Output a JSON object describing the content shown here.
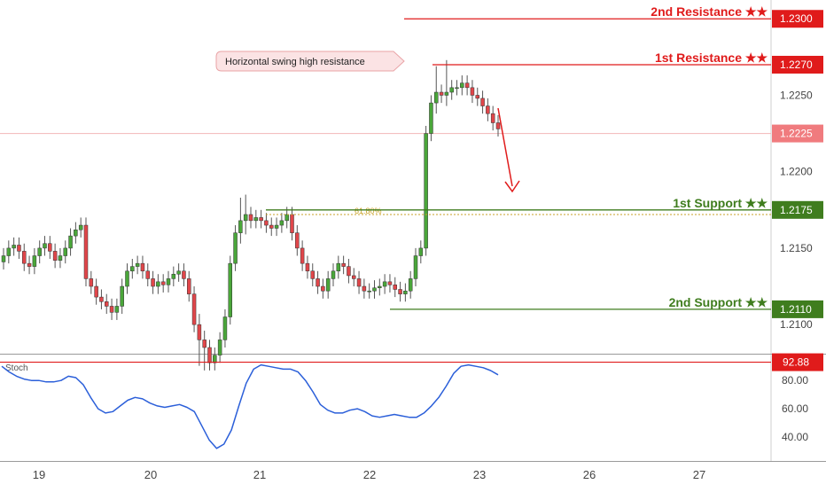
{
  "colors": {
    "resistance": "#e01b1b",
    "support": "#3f7d1e",
    "bull": "#4aa63a",
    "bear": "#e0464a",
    "stoch": "#2b5fd9",
    "axis_text": "#444444",
    "callout_fill": "#fbe3e4",
    "current_price_bg": "#f07b7e",
    "fib": "#c9a227"
  },
  "chart_data": [
    {
      "type": "candlestick",
      "ylim": [
        1.2085,
        1.231
      ],
      "x_ticks": [
        "19",
        "20",
        "21",
        "22",
        "23",
        "26",
        "27"
      ],
      "y_ticks": [
        "1.2250",
        "1.2200",
        "1.2150",
        "1.2100"
      ],
      "current_price": "1.2225",
      "levels": [
        {
          "name": "2nd Resistance ★★",
          "value": 1.23,
          "tag": "1.2300",
          "kind": "resistance"
        },
        {
          "name": "1st Resistance ★★",
          "value": 1.227,
          "tag": "1.2270",
          "kind": "resistance"
        },
        {
          "name": "1st Support ★★",
          "value": 1.2175,
          "tag": "1.2175",
          "kind": "support"
        },
        {
          "name": "2nd Support ★★",
          "value": 1.211,
          "tag": "1.2110",
          "kind": "support"
        }
      ],
      "fib_label": "61.80%",
      "fib_value": 1.2172,
      "annotation": "Horizontal swing high resistance",
      "close": [
        1.2145,
        1.215,
        1.2152,
        1.2148,
        1.214,
        1.2138,
        1.2145,
        1.215,
        1.2153,
        1.2148,
        1.2142,
        1.2145,
        1.215,
        1.2158,
        1.2162,
        1.2165,
        1.213,
        1.2125,
        1.2118,
        1.2115,
        1.2112,
        1.2108,
        1.2112,
        1.2125,
        1.2135,
        1.2138,
        1.214,
        1.2135,
        1.213,
        1.2125,
        1.2128,
        1.2126,
        1.213,
        1.2133,
        1.2135,
        1.213,
        1.212,
        1.21,
        1.209,
        1.2085,
        1.2075,
        1.208,
        1.209,
        1.2105,
        1.214,
        1.216,
        1.2168,
        1.2172,
        1.2168,
        1.217,
        1.2168,
        1.2165,
        1.2163,
        1.2165,
        1.2168,
        1.2172,
        1.216,
        1.215,
        1.214,
        1.2135,
        1.213,
        1.2125,
        1.2122,
        1.213,
        1.2135,
        1.214,
        1.2138,
        1.2132,
        1.213,
        1.2125,
        1.2122,
        1.2122,
        1.2124,
        1.2125,
        1.2128,
        1.2126,
        1.2123,
        1.212,
        1.2122,
        1.213,
        1.2145,
        1.215,
        1.2225,
        1.2245,
        1.2252,
        1.225,
        1.2252,
        1.2255,
        1.2255,
        1.2258,
        1.2255,
        1.225,
        1.2248,
        1.2243,
        1.2238,
        1.2232,
        1.2228
      ],
      "stoch": {
        "name": "Stoch",
        "overbought": 92.88,
        "overbought_tag": "92.88",
        "y_ticks": [
          "80.00",
          "60.00",
          "40.00"
        ],
        "ylim": [
          25,
          97
        ],
        "values": [
          90,
          86,
          83,
          81,
          80,
          80,
          79,
          79,
          80,
          83,
          82,
          77,
          68,
          60,
          57,
          58,
          62,
          66,
          68,
          67,
          64,
          62,
          61,
          62,
          63,
          61,
          58,
          48,
          38,
          32,
          35,
          45,
          62,
          78,
          88,
          91,
          90,
          89,
          88,
          88,
          86,
          80,
          72,
          63,
          59,
          57,
          57,
          59,
          60,
          58,
          55,
          54,
          55,
          56,
          55,
          54,
          54,
          57,
          62,
          68,
          76,
          85,
          90,
          91,
          90,
          89,
          87,
          84
        ]
      }
    }
  ]
}
